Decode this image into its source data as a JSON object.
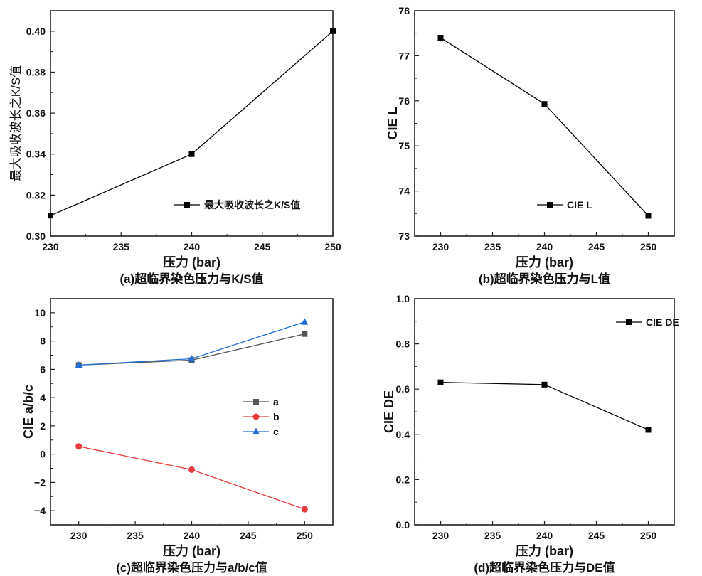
{
  "chart_data": [
    {
      "type": "line",
      "caption": "(a)超临界染色压力与K/S值",
      "xlabel": "压力 (bar)",
      "ylabel": "最大吸收波长之K/S值",
      "x": [
        230,
        240,
        250
      ],
      "xlim": [
        230,
        250
      ],
      "ylim": [
        0.3,
        0.41
      ],
      "xticks": [
        "230",
        "235",
        "240",
        "245",
        "250"
      ],
      "xtick_values": [
        230,
        235,
        240,
        245,
        250
      ],
      "yticks": [
        "0.30",
        "0.32",
        "0.34",
        "0.36",
        "0.38",
        "0.40"
      ],
      "ytick_values": [
        0.3,
        0.32,
        0.34,
        0.36,
        0.38,
        0.4
      ],
      "legend_position": "lower-right",
      "series": [
        {
          "name": "最大吸收波长之K/S值",
          "values": [
            0.31,
            0.34,
            0.4
          ],
          "color": "#000000",
          "marker": "square"
        }
      ]
    },
    {
      "type": "line",
      "caption": "(b)超临界染色压力与L值",
      "xlabel": "压力 (bar)",
      "ylabel": "CIE L",
      "x": [
        230,
        240,
        250
      ],
      "xlim": [
        227.5,
        252.5
      ],
      "ylim": [
        73,
        78
      ],
      "xticks": [
        "230",
        "235",
        "240",
        "245",
        "250"
      ],
      "xtick_values": [
        230,
        235,
        240,
        245,
        250
      ],
      "yticks": [
        "73",
        "74",
        "75",
        "76",
        "77",
        "78"
      ],
      "ytick_values": [
        73,
        74,
        75,
        76,
        77,
        78
      ],
      "legend_position": "lower-center",
      "series": [
        {
          "name": "CIE L",
          "values": [
            77.4,
            75.93,
            73.45
          ],
          "color": "#000000",
          "marker": "square"
        }
      ]
    },
    {
      "type": "line",
      "caption": "(c)超临界染色压力与a/b/c值",
      "xlabel": "压力 (bar)",
      "ylabel": "CIE a/b/c",
      "x": [
        230,
        240,
        250
      ],
      "xlim": [
        227.5,
        252.5
      ],
      "ylim": [
        -5,
        11
      ],
      "xticks": [
        "230",
        "235",
        "240",
        "245",
        "250"
      ],
      "xtick_values": [
        230,
        235,
        240,
        245,
        250
      ],
      "yticks": [
        "−4",
        "−2",
        "0",
        "2",
        "4",
        "6",
        "8",
        "10"
      ],
      "ytick_values": [
        -4,
        -2,
        0,
        2,
        4,
        6,
        8,
        10
      ],
      "legend_position": "center-right",
      "series": [
        {
          "name": "a",
          "values": [
            6.3,
            6.65,
            8.5
          ],
          "color": "#555555",
          "marker": "square"
        },
        {
          "name": "b",
          "values": [
            0.55,
            -1.1,
            -3.9
          ],
          "color": "#e8393b",
          "marker": "circle"
        },
        {
          "name": "c",
          "values": [
            6.3,
            6.75,
            9.35
          ],
          "color": "#1f6fd6",
          "marker": "triangle"
        }
      ]
    },
    {
      "type": "line",
      "caption": "(d)超临界染色压力与DE值",
      "xlabel": "压力 (bar)",
      "ylabel": "CIE DE",
      "x": [
        230,
        240,
        250
      ],
      "xlim": [
        227.5,
        252.5
      ],
      "ylim": [
        0,
        1
      ],
      "xticks": [
        "230",
        "235",
        "240",
        "245",
        "250"
      ],
      "xtick_values": [
        230,
        235,
        240,
        245,
        250
      ],
      "yticks": [
        "0.0",
        "0.2",
        "0.4",
        "0.6",
        "0.8",
        "1.0"
      ],
      "ytick_values": [
        0,
        0.2,
        0.4,
        0.6,
        0.8,
        1.0
      ],
      "legend_position": "top-right",
      "series": [
        {
          "name": "CIE DE",
          "values": [
            0.63,
            0.62,
            0.42
          ],
          "color": "#000000",
          "marker": "square"
        }
      ]
    }
  ]
}
